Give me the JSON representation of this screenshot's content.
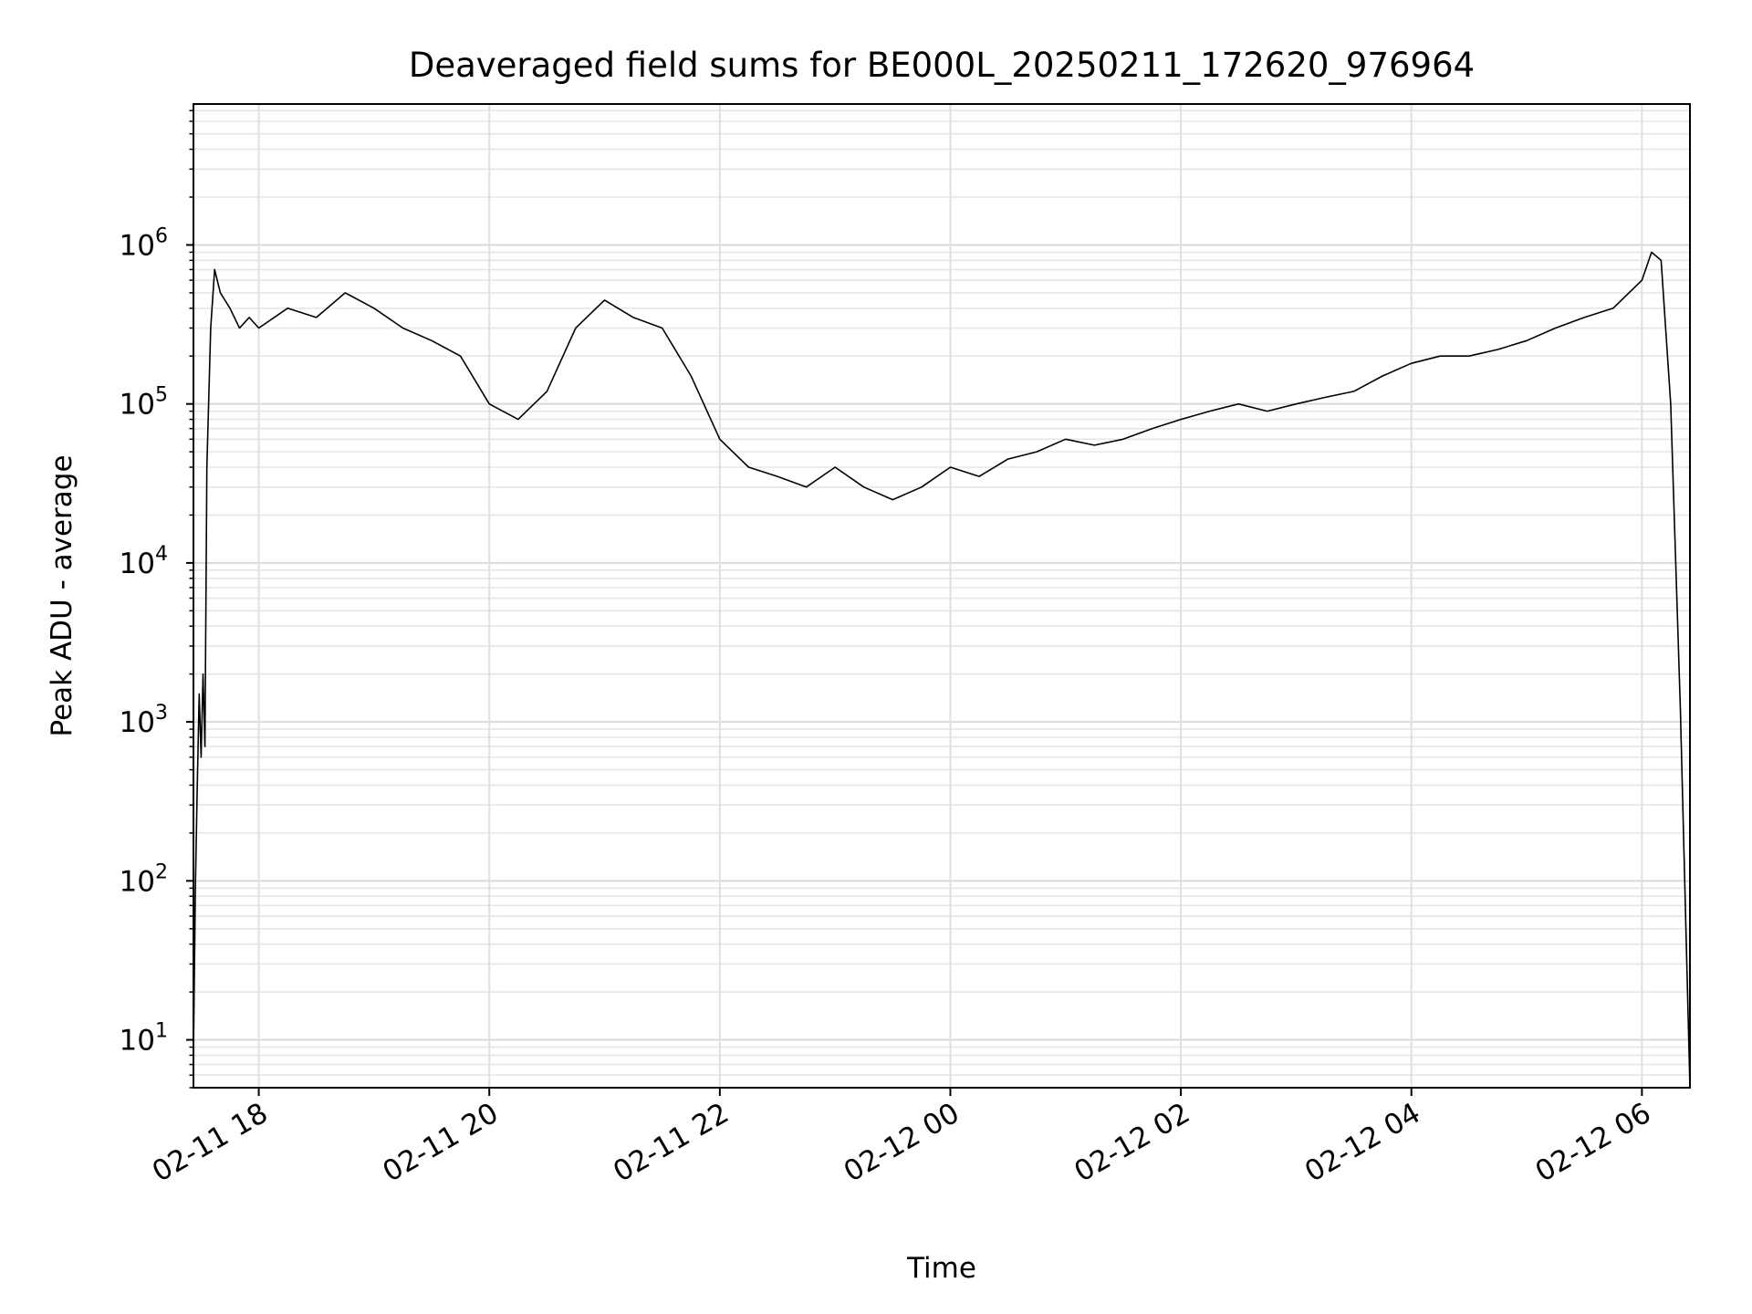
{
  "chart_data": {
    "type": "line",
    "title": "Deaveraged field sums for BE000L_20250211_172620_976964",
    "xlabel": "Time",
    "ylabel": "Peak ADU - average",
    "yscale": "log",
    "xlim": [
      "2025-02-11 17:26",
      "2025-02-12 06:25"
    ],
    "ylim": [
      5,
      7700000
    ],
    "grid": "on (major and minor)",
    "legend": "none",
    "line_color": "#000000",
    "x_ticks": [
      {
        "label": "02-11 18",
        "time": "2025-02-11 18:00"
      },
      {
        "label": "02-11 20",
        "time": "2025-02-11 20:00"
      },
      {
        "label": "02-11 22",
        "time": "2025-02-11 22:00"
      },
      {
        "label": "02-12 00",
        "time": "2025-02-12 00:00"
      },
      {
        "label": "02-12 02",
        "time": "2025-02-12 02:00"
      },
      {
        "label": "02-12 04",
        "time": "2025-02-12 04:00"
      },
      {
        "label": "02-12 06",
        "time": "2025-02-12 06:00"
      }
    ],
    "y_ticks": [
      {
        "base": "10",
        "exp": "1",
        "value": 10
      },
      {
        "base": "10",
        "exp": "2",
        "value": 100
      },
      {
        "base": "10",
        "exp": "3",
        "value": 1000
      },
      {
        "base": "10",
        "exp": "4",
        "value": 10000
      },
      {
        "base": "10",
        "exp": "5",
        "value": 100000
      },
      {
        "base": "10",
        "exp": "6",
        "value": 1000000
      }
    ],
    "series": [
      {
        "x": [
          "2025-02-11 17:26",
          "2025-02-11 17:27",
          "2025-02-11 17:28",
          "2025-02-11 17:29",
          "2025-02-11 17:30",
          "2025-02-11 17:31",
          "2025-02-11 17:32",
          "2025-02-11 17:33",
          "2025-02-11 17:35",
          "2025-02-11 17:37",
          "2025-02-11 17:40",
          "2025-02-11 17:45",
          "2025-02-11 17:50",
          "2025-02-11 17:55",
          "2025-02-11 18:00",
          "2025-02-11 18:15",
          "2025-02-11 18:30",
          "2025-02-11 18:45",
          "2025-02-11 19:00",
          "2025-02-11 19:15",
          "2025-02-11 19:30",
          "2025-02-11 19:45",
          "2025-02-11 20:00",
          "2025-02-11 20:15",
          "2025-02-11 20:30",
          "2025-02-11 20:45",
          "2025-02-11 21:00",
          "2025-02-11 21:15",
          "2025-02-11 21:30",
          "2025-02-11 21:45",
          "2025-02-11 22:00",
          "2025-02-11 22:15",
          "2025-02-11 22:30",
          "2025-02-11 22:45",
          "2025-02-11 23:00",
          "2025-02-11 23:15",
          "2025-02-11 23:30",
          "2025-02-11 23:45",
          "2025-02-12 00:00",
          "2025-02-12 00:15",
          "2025-02-12 00:30",
          "2025-02-12 00:45",
          "2025-02-12 01:00",
          "2025-02-12 01:15",
          "2025-02-12 01:30",
          "2025-02-12 01:45",
          "2025-02-12 02:00",
          "2025-02-12 02:15",
          "2025-02-12 02:30",
          "2025-02-12 02:45",
          "2025-02-12 03:00",
          "2025-02-12 03:15",
          "2025-02-12 03:30",
          "2025-02-12 03:45",
          "2025-02-12 04:00",
          "2025-02-12 04:15",
          "2025-02-12 04:30",
          "2025-02-12 04:45",
          "2025-02-12 05:00",
          "2025-02-12 05:15",
          "2025-02-12 05:30",
          "2025-02-12 05:45",
          "2025-02-12 06:00",
          "2025-02-12 06:05",
          "2025-02-12 06:10",
          "2025-02-12 06:15",
          "2025-02-12 06:20",
          "2025-02-12 06:25"
        ],
        "y": [
          8,
          90,
          400,
          1500,
          600,
          2000,
          700,
          40000,
          300000,
          700000,
          500000,
          400000,
          300000,
          350000,
          300000,
          400000,
          350000,
          500000,
          400000,
          300000,
          250000,
          200000,
          100000,
          80000,
          120000,
          300000,
          450000,
          350000,
          300000,
          150000,
          60000,
          40000,
          35000,
          30000,
          40000,
          30000,
          25000,
          30000,
          40000,
          35000,
          45000,
          50000,
          60000,
          55000,
          60000,
          70000,
          80000,
          90000,
          100000,
          90000,
          100000,
          110000,
          120000,
          150000,
          180000,
          200000,
          200000,
          220000,
          250000,
          300000,
          350000,
          400000,
          600000,
          900000,
          800000,
          100000,
          1200,
          5
        ]
      }
    ]
  }
}
